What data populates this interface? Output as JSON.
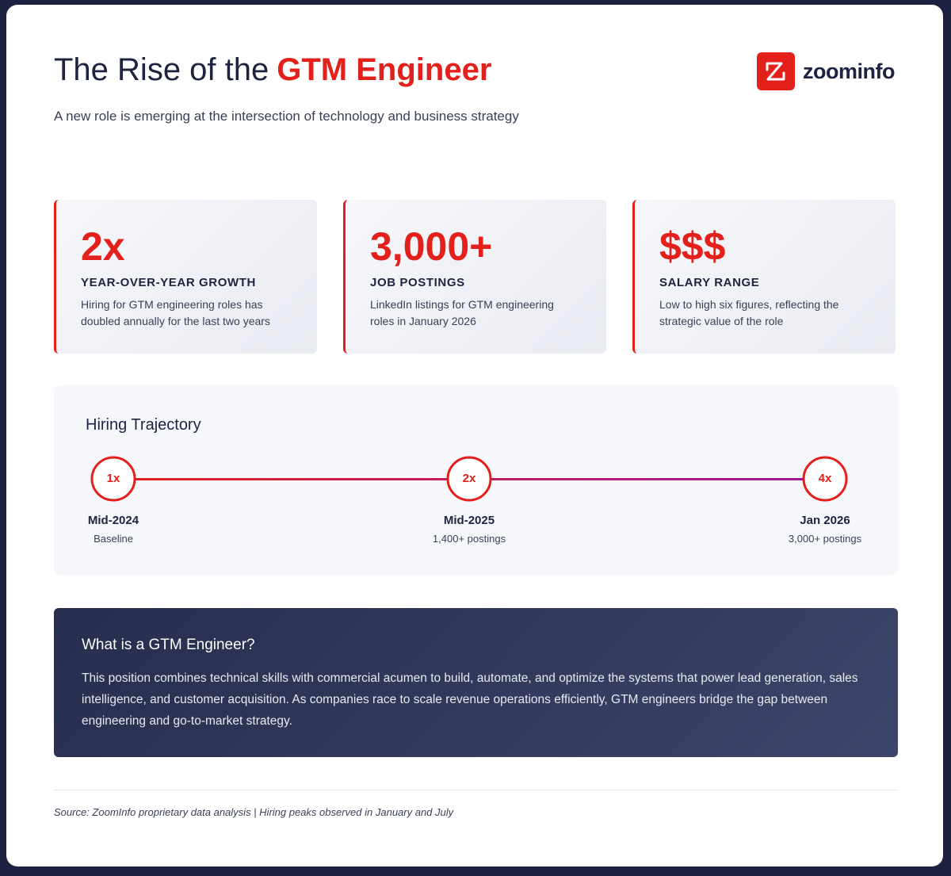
{
  "header": {
    "title_prefix": "The Rise of the",
    "title_highlight": "GTM Engineer",
    "subtitle": "A new role is emerging at the intersection of technology and business strategy",
    "logo": "zoominfo"
  },
  "stats": [
    {
      "value": "2x",
      "label": "YEAR-OVER-YEAR GROWTH",
      "description": "Hiring for GTM engineering roles has doubled annually for the last two years"
    },
    {
      "value": "3,000+",
      "label": "JOB POSTINGS",
      "description": "LinkedIn listings for GTM engineering roles in January 2026"
    },
    {
      "value": "$$$",
      "label": "SALARY RANGE",
      "description": "Low to high six figures, reflecting the strategic value of the role"
    }
  ],
  "trajectory": {
    "title": "Hiring Trajectory",
    "milestones": [
      {
        "multiplier": "1x",
        "date": "Mid-2024",
        "note": "Baseline"
      },
      {
        "multiplier": "2x",
        "date": "Mid-2025",
        "note": "1,400+ postings"
      },
      {
        "multiplier": "4x",
        "date": "Jan 2026",
        "note": "3,000+ postings"
      }
    ]
  },
  "explainer": {
    "title": "What is a GTM Engineer?",
    "body": "This position combines technical skills with commercial acumen to build, automate, and optimize the systems that power lead generation, sales intelligence, and customer acquisition. As companies race to scale revenue operations efficiently, GTM engineers bridge the gap between engineering and go-to-market strategy."
  },
  "footer": {
    "source": "Source: ZoomInfo proprietary data analysis | Hiring peaks observed in January and July"
  }
}
